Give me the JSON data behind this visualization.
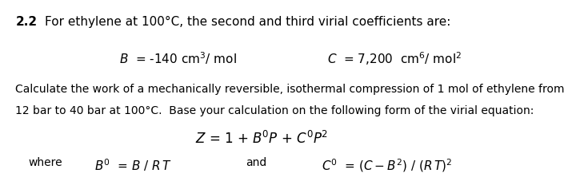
{
  "background_color": "#ffffff",
  "title_bold": "2.2",
  "title_text": "For ethylene at 100°C, the second and third virial coefficients are:",
  "para1_line1": "Calculate the work of a mechanically reversible, isothermal compression of 1 mol of ethylene from",
  "para1_line2": "12 bar to 40 bar at 100°C.  Base your calculation on the following form of the virial equation:",
  "font_size_title": 11,
  "font_size_body": 10,
  "font_size_eq": 11
}
